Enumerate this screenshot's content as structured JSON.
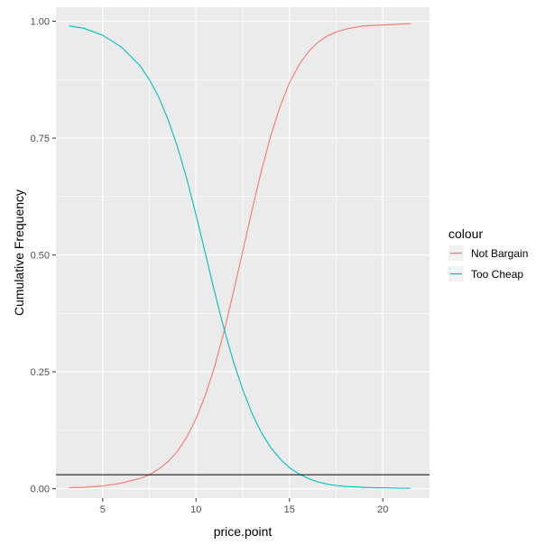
{
  "chart_data": {
    "type": "line",
    "xlabel": "price.point",
    "ylabel": "Cumulative Frequency",
    "xlim": [
      2.5,
      22.5
    ],
    "ylim": [
      -0.02,
      1.03
    ],
    "x_ticks": [
      5,
      10,
      15,
      20
    ],
    "x_tick_labels": [
      "5",
      "10",
      "15",
      "20"
    ],
    "y_ticks": [
      0,
      0.25,
      0.5,
      0.75,
      1
    ],
    "y_tick_labels": [
      "0.00",
      "0.25",
      "0.50",
      "0.75",
      "1.00"
    ],
    "grid": true,
    "legend": {
      "title": "colour",
      "position": "right"
    },
    "background_color": "#ebebeb",
    "series": [
      {
        "name": "Not Bargain",
        "color": "#f8766d",
        "x": [
          3.2,
          4,
          5,
          6,
          7,
          7.5,
          8,
          8.5,
          9,
          9.5,
          10,
          10.5,
          11,
          11.5,
          12,
          12.5,
          13,
          13.5,
          14,
          14.5,
          15,
          15.5,
          16,
          16.5,
          17,
          17.5,
          18,
          18.5,
          19,
          19.5,
          20,
          21,
          21.5
        ],
        "y": [
          0.002,
          0.003,
          0.006,
          0.012,
          0.022,
          0.03,
          0.042,
          0.058,
          0.08,
          0.11,
          0.15,
          0.2,
          0.262,
          0.336,
          0.42,
          0.508,
          0.596,
          0.68,
          0.755,
          0.818,
          0.868,
          0.906,
          0.934,
          0.954,
          0.968,
          0.977,
          0.983,
          0.987,
          0.99,
          0.991,
          0.992,
          0.994,
          0.995
        ]
      },
      {
        "name": "Too Cheap",
        "color": "#00bfc4",
        "x": [
          3.2,
          4,
          5,
          6,
          7,
          7.5,
          8,
          8.5,
          9,
          9.5,
          10,
          10.5,
          11,
          11.5,
          12,
          12.5,
          13,
          13.5,
          14,
          14.5,
          15,
          15.5,
          16,
          16.5,
          17,
          17.5,
          18,
          18.5,
          19,
          19.5,
          20,
          21,
          21.5
        ],
        "y": [
          0.99,
          0.985,
          0.97,
          0.945,
          0.905,
          0.875,
          0.838,
          0.79,
          0.732,
          0.664,
          0.586,
          0.503,
          0.42,
          0.342,
          0.272,
          0.212,
          0.161,
          0.12,
          0.088,
          0.064,
          0.045,
          0.032,
          0.022,
          0.015,
          0.01,
          0.007,
          0.005,
          0.004,
          0.003,
          0.002,
          0.002,
          0.001,
          0.001
        ]
      }
    ],
    "hline": {
      "y": 0.03,
      "color": "#000000"
    }
  }
}
